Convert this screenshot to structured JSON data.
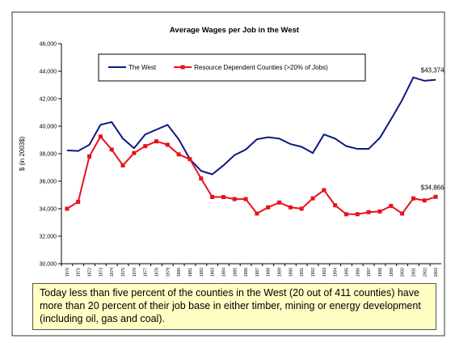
{
  "chart_data": {
    "type": "line",
    "title": "Average Wages per Job in the West",
    "y_label": "$ (in 2003$)",
    "categories": [
      "1970",
      "1971",
      "1972",
      "1973",
      "1974",
      "1975",
      "1976",
      "1977",
      "1978",
      "1979",
      "1980",
      "1981",
      "1982",
      "1983",
      "1984",
      "1985",
      "1986",
      "1987",
      "1988",
      "1989",
      "1990",
      "1991",
      "1992",
      "1993",
      "1994",
      "1995",
      "1996",
      "1997",
      "1998",
      "1999",
      "2000",
      "2001",
      "2002",
      "2003"
    ],
    "series": [
      {
        "name": "The West",
        "color": "#0a1a80",
        "marker": false,
        "values": [
          38240,
          38200,
          38650,
          40100,
          40300,
          39100,
          38400,
          39400,
          39750,
          40100,
          39050,
          37600,
          36750,
          36500,
          37150,
          37900,
          38300,
          39050,
          39200,
          39100,
          38700,
          38500,
          38050,
          39400,
          39100,
          38550,
          38350,
          38350,
          39150,
          40500,
          41900,
          43550,
          43300,
          43374
        ],
        "value_labels": [
          null,
          null,
          null,
          null,
          null,
          null,
          null,
          null,
          null,
          null,
          null,
          null,
          null,
          null,
          null,
          null,
          null,
          null,
          null,
          null,
          null,
          null,
          null,
          null,
          null,
          null,
          null,
          null,
          null,
          null,
          null,
          null,
          null,
          "$43,374"
        ]
      },
      {
        "name": "Resource Dependent Counties (>20% of Jobs)",
        "color": "#e8121a",
        "marker": true,
        "values": [
          34000,
          34500,
          37800,
          39250,
          38300,
          37150,
          38050,
          38550,
          38900,
          38650,
          37950,
          37600,
          36200,
          34850,
          34850,
          34700,
          34700,
          33650,
          34100,
          34450,
          34100,
          34000,
          34750,
          35350,
          34250,
          33600,
          33600,
          33750,
          33800,
          34200,
          33650,
          34750,
          34600,
          34866
        ],
        "value_labels": [
          null,
          null,
          null,
          null,
          null,
          null,
          null,
          null,
          null,
          null,
          null,
          null,
          null,
          null,
          null,
          null,
          null,
          null,
          null,
          null,
          null,
          null,
          null,
          null,
          null,
          null,
          null,
          null,
          null,
          null,
          null,
          null,
          null,
          "$34,866"
        ]
      }
    ],
    "ylim": [
      30000,
      46000
    ],
    "yticks": [
      {
        "value": 30000,
        "label": "30,000"
      },
      {
        "value": 32000,
        "label": "32,000"
      },
      {
        "value": 34000,
        "label": "34,000"
      },
      {
        "value": 36000,
        "label": "36,000"
      },
      {
        "value": 38000,
        "label": "38,000"
      },
      {
        "value": 40000,
        "label": "40,000"
      },
      {
        "value": 42000,
        "label": "42,000"
      },
      {
        "value": 44000,
        "label": "44,000"
      },
      {
        "value": 46000,
        "label": "46,000"
      }
    ],
    "legend": "top",
    "note": "Today less than five percent of the counties in the West (20 out of 411 counties) have more than 20 percent of their job base in either timber, mining or energy development (including oil, gas and coal)."
  }
}
